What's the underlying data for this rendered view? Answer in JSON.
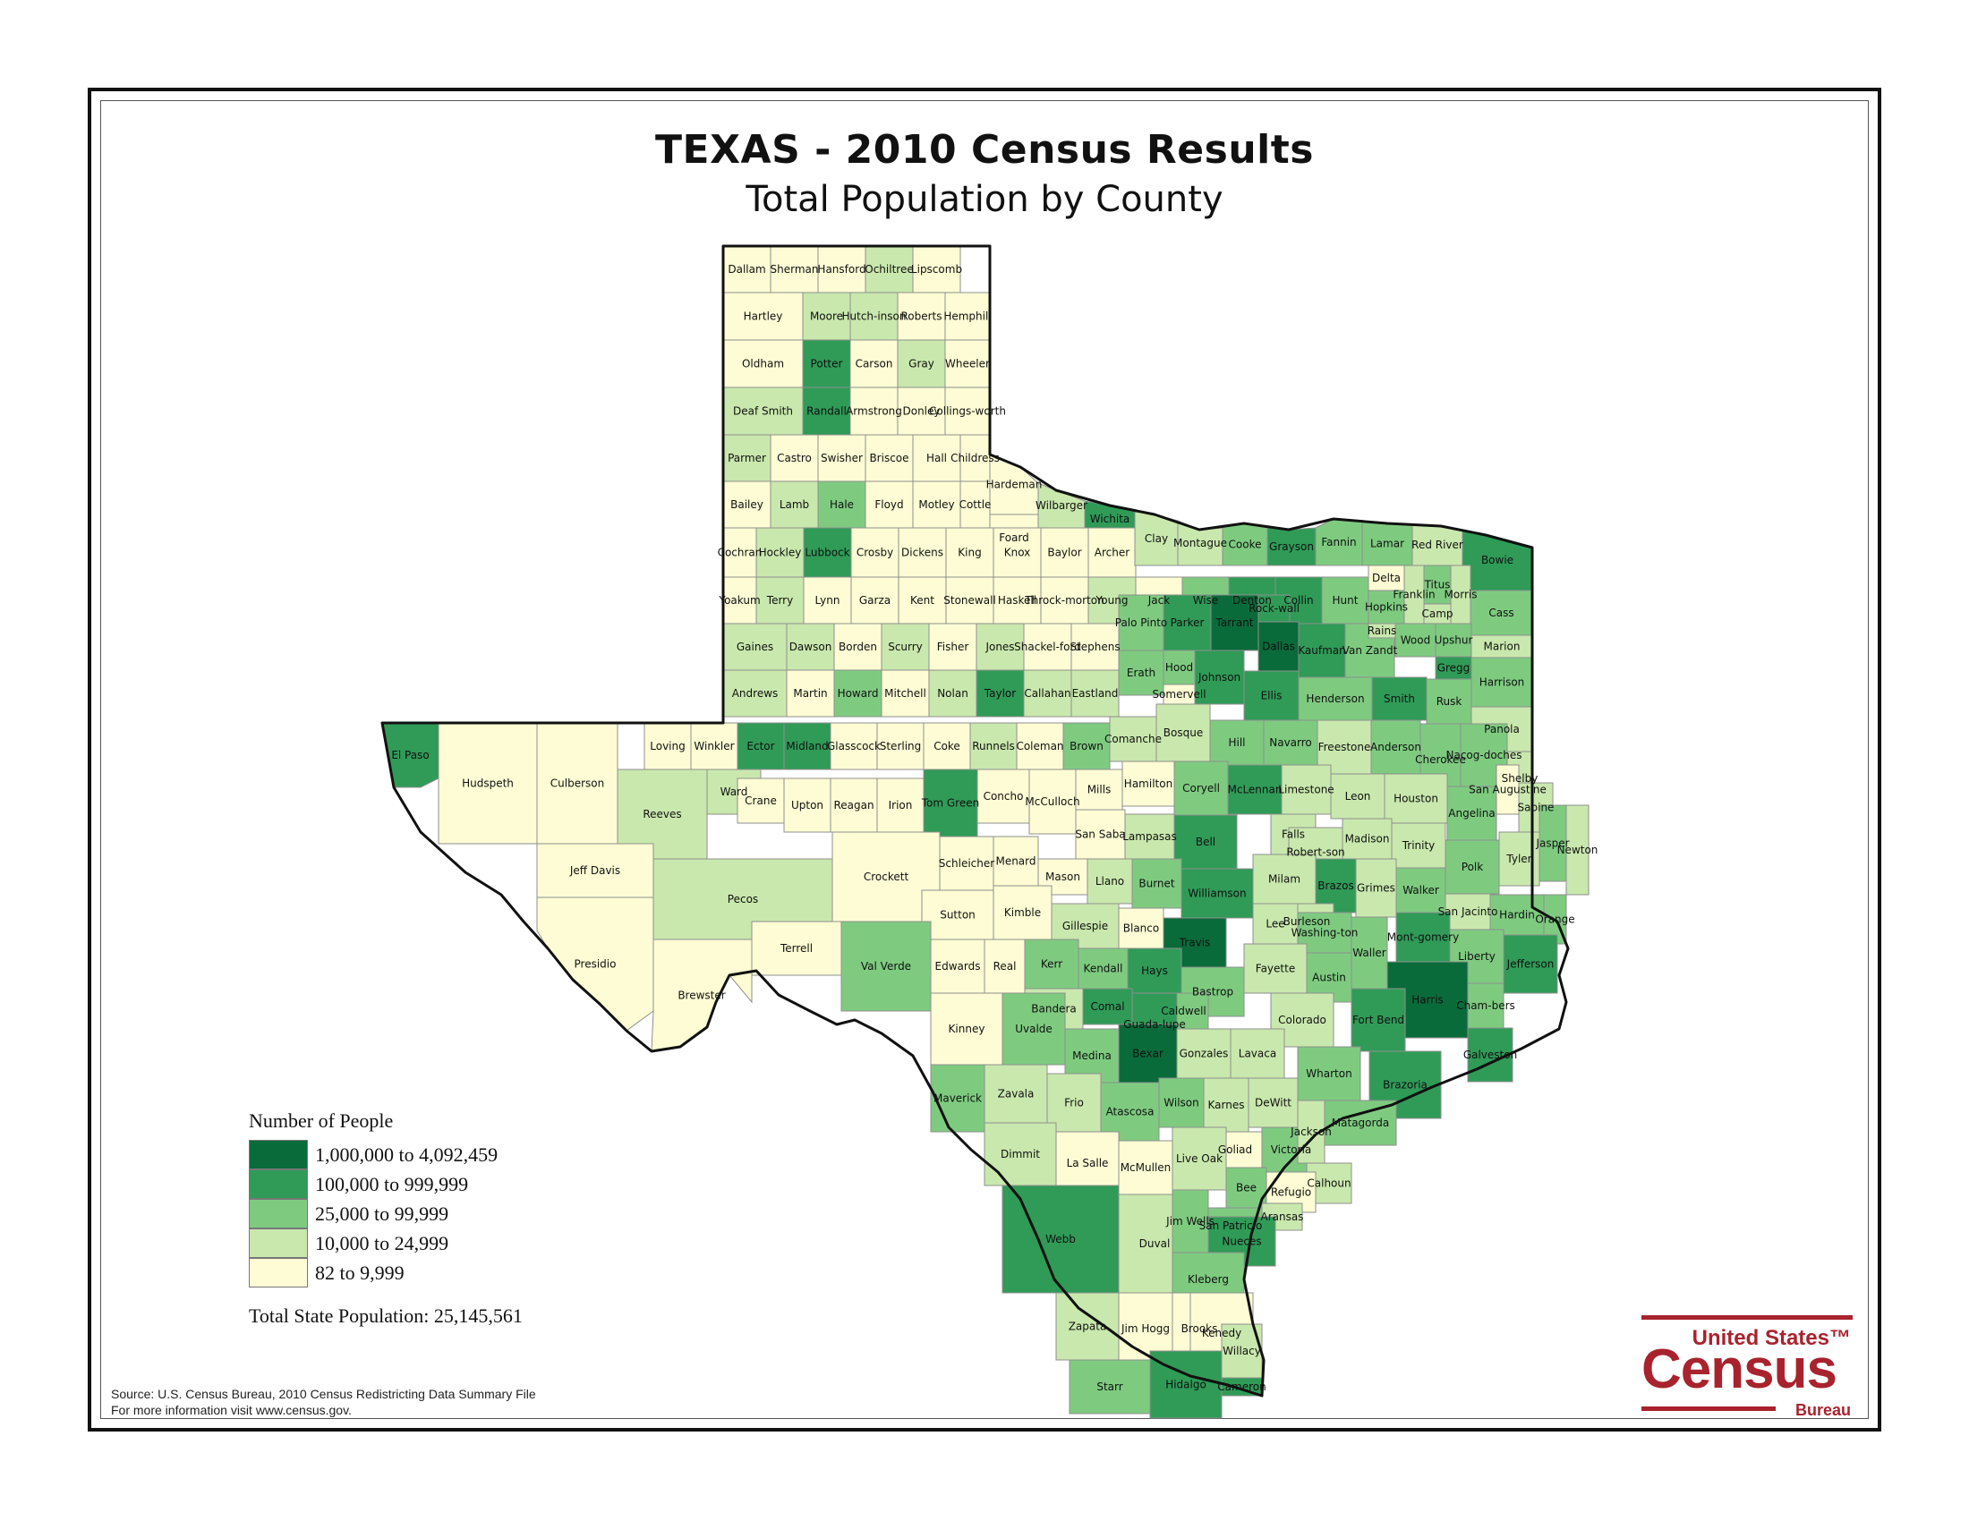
{
  "title": "TEXAS - 2010 Census Results",
  "subtitle": "Total Population by County",
  "legend": {
    "title": "Number of People",
    "classes": [
      {
        "label": "1,000,000 to 4,092,459",
        "color": "#0a6b3a"
      },
      {
        "label": "100,000 to 999,999",
        "color": "#2f9b57"
      },
      {
        "label": "25,000 to 99,999",
        "color": "#7ecb80"
      },
      {
        "label": "10,000 to 24,999",
        "color": "#c9e8ad"
      },
      {
        "label": "82 to 9,999",
        "color": "#fdfcd4"
      }
    ]
  },
  "total_population": "Total State Population:  25,145,561",
  "source": {
    "line1": "Source:  U.S. Census Bureau, 2010 Census Redistricting Data Summary File",
    "line2": "For more information visit www.census.gov."
  },
  "logo": {
    "top": "United States™",
    "main": "Census",
    "bottom": "Bureau"
  },
  "counties": [
    {
      "name": "Dallam",
      "class": 4
    },
    {
      "name": "Sherman",
      "class": 4
    },
    {
      "name": "Hansford",
      "class": 4
    },
    {
      "name": "Ochiltree",
      "class": 3
    },
    {
      "name": "Lipscomb",
      "class": 4
    },
    {
      "name": "Hartley",
      "class": 4
    },
    {
      "name": "Moore",
      "class": 3
    },
    {
      "name": "Hutch-inson",
      "class": 3
    },
    {
      "name": "Roberts",
      "class": 4
    },
    {
      "name": "Hemphill",
      "class": 4
    },
    {
      "name": "Oldham",
      "class": 4
    },
    {
      "name": "Potter",
      "class": 1
    },
    {
      "name": "Carson",
      "class": 4
    },
    {
      "name": "Gray",
      "class": 3
    },
    {
      "name": "Wheeler",
      "class": 4
    },
    {
      "name": "Deaf Smith",
      "class": 3
    },
    {
      "name": "Randall",
      "class": 1
    },
    {
      "name": "Armstrong",
      "class": 4
    },
    {
      "name": "Donley",
      "class": 4
    },
    {
      "name": "Collings-worth",
      "class": 4
    },
    {
      "name": "Parmer",
      "class": 3
    },
    {
      "name": "Castro",
      "class": 4
    },
    {
      "name": "Swisher",
      "class": 4
    },
    {
      "name": "Briscoe",
      "class": 4
    },
    {
      "name": "Hall",
      "class": 4
    },
    {
      "name": "Childress",
      "class": 4
    },
    {
      "name": "Hardeman",
      "class": 4
    },
    {
      "name": "Wilbarger",
      "class": 3
    },
    {
      "name": "Wichita",
      "class": 1
    },
    {
      "name": "Foard",
      "class": 4
    },
    {
      "name": "Bailey",
      "class": 4
    },
    {
      "name": "Lamb",
      "class": 3
    },
    {
      "name": "Hale",
      "class": 2
    },
    {
      "name": "Floyd",
      "class": 4
    },
    {
      "name": "Motley",
      "class": 4
    },
    {
      "name": "Cottle",
      "class": 4
    },
    {
      "name": "Cochran",
      "class": 4
    },
    {
      "name": "Hockley",
      "class": 3
    },
    {
      "name": "Lubbock",
      "class": 1
    },
    {
      "name": "Crosby",
      "class": 4
    },
    {
      "name": "Dickens",
      "class": 4
    },
    {
      "name": "King",
      "class": 4
    },
    {
      "name": "Knox",
      "class": 4
    },
    {
      "name": "Baylor",
      "class": 4
    },
    {
      "name": "Archer",
      "class": 4
    },
    {
      "name": "Clay",
      "class": 3
    },
    {
      "name": "Montague",
      "class": 3
    },
    {
      "name": "Cooke",
      "class": 2
    },
    {
      "name": "Grayson",
      "class": 1
    },
    {
      "name": "Fannin",
      "class": 2
    },
    {
      "name": "Lamar",
      "class": 2
    },
    {
      "name": "Red River",
      "class": 3
    },
    {
      "name": "Bowie",
      "class": 1
    },
    {
      "name": "Yoakum",
      "class": 4
    },
    {
      "name": "Terry",
      "class": 3
    },
    {
      "name": "Lynn",
      "class": 4
    },
    {
      "name": "Garza",
      "class": 4
    },
    {
      "name": "Kent",
      "class": 4
    },
    {
      "name": "Stonewall",
      "class": 4
    },
    {
      "name": "Haskell",
      "class": 4
    },
    {
      "name": "Throck-morton",
      "class": 4
    },
    {
      "name": "Young",
      "class": 3
    },
    {
      "name": "Jack",
      "class": 4
    },
    {
      "name": "Wise",
      "class": 2
    },
    {
      "name": "Denton",
      "class": 1
    },
    {
      "name": "Collin",
      "class": 1
    },
    {
      "name": "Hunt",
      "class": 2
    },
    {
      "name": "Delta",
      "class": 4
    },
    {
      "name": "Hopkins",
      "class": 2
    },
    {
      "name": "Franklin",
      "class": 3
    },
    {
      "name": "Titus",
      "class": 2
    },
    {
      "name": "Morris",
      "class": 3
    },
    {
      "name": "Cass",
      "class": 2
    },
    {
      "name": "Camp",
      "class": 3
    },
    {
      "name": "Gaines",
      "class": 3
    },
    {
      "name": "Dawson",
      "class": 3
    },
    {
      "name": "Borden",
      "class": 4
    },
    {
      "name": "Scurry",
      "class": 3
    },
    {
      "name": "Fisher",
      "class": 4
    },
    {
      "name": "Jones",
      "class": 3
    },
    {
      "name": "Shackel-ford",
      "class": 4
    },
    {
      "name": "Stephens",
      "class": 4
    },
    {
      "name": "Palo Pinto",
      "class": 2
    },
    {
      "name": "Parker",
      "class": 1
    },
    {
      "name": "Tarrant",
      "class": 0
    },
    {
      "name": "Dallas",
      "class": 0
    },
    {
      "name": "Rock-wall",
      "class": 1
    },
    {
      "name": "Kaufman",
      "class": 1
    },
    {
      "name": "Van Zandt",
      "class": 2
    },
    {
      "name": "Rains",
      "class": 3
    },
    {
      "name": "Wood",
      "class": 2
    },
    {
      "name": "Upshur",
      "class": 2
    },
    {
      "name": "Marion",
      "class": 3
    },
    {
      "name": "Gregg",
      "class": 1
    },
    {
      "name": "Harrison",
      "class": 2
    },
    {
      "name": "Andrews",
      "class": 3
    },
    {
      "name": "Martin",
      "class": 4
    },
    {
      "name": "Howard",
      "class": 2
    },
    {
      "name": "Mitchell",
      "class": 4
    },
    {
      "name": "Nolan",
      "class": 3
    },
    {
      "name": "Taylor",
      "class": 1
    },
    {
      "name": "Callahan",
      "class": 3
    },
    {
      "name": "Eastland",
      "class": 3
    },
    {
      "name": "Erath",
      "class": 2
    },
    {
      "name": "Hood",
      "class": 2
    },
    {
      "name": "Somervell",
      "class": 4
    },
    {
      "name": "Johnson",
      "class": 1
    },
    {
      "name": "Ellis",
      "class": 1
    },
    {
      "name": "Henderson",
      "class": 2
    },
    {
      "name": "Smith",
      "class": 1
    },
    {
      "name": "Rusk",
      "class": 2
    },
    {
      "name": "Panola",
      "class": 3
    },
    {
      "name": "El Paso",
      "class": 1
    },
    {
      "name": "Loving",
      "class": 4
    },
    {
      "name": "Winkler",
      "class": 4
    },
    {
      "name": "Ector",
      "class": 1
    },
    {
      "name": "Midland",
      "class": 1
    },
    {
      "name": "Glasscock",
      "class": 4
    },
    {
      "name": "Sterling",
      "class": 4
    },
    {
      "name": "Coke",
      "class": 4
    },
    {
      "name": "Runnels",
      "class": 3
    },
    {
      "name": "Coleman",
      "class": 4
    },
    {
      "name": "Brown",
      "class": 2
    },
    {
      "name": "Comanche",
      "class": 3
    },
    {
      "name": "Bosque",
      "class": 3
    },
    {
      "name": "Hill",
      "class": 2
    },
    {
      "name": "Navarro",
      "class": 2
    },
    {
      "name": "Anderson",
      "class": 2
    },
    {
      "name": "Cherokee",
      "class": 2
    },
    {
      "name": "Nacog-doches",
      "class": 2
    },
    {
      "name": "Shelby",
      "class": 3
    },
    {
      "name": "Freestone",
      "class": 3
    },
    {
      "name": "Hudspeth",
      "class": 4
    },
    {
      "name": "Culberson",
      "class": 4
    },
    {
      "name": "Reeves",
      "class": 3
    },
    {
      "name": "Ward",
      "class": 3
    },
    {
      "name": "Crane",
      "class": 4
    },
    {
      "name": "Upton",
      "class": 4
    },
    {
      "name": "Reagan",
      "class": 4
    },
    {
      "name": "Irion",
      "class": 4
    },
    {
      "name": "Tom Green",
      "class": 1
    },
    {
      "name": "Concho",
      "class": 4
    },
    {
      "name": "McCulloch",
      "class": 4
    },
    {
      "name": "Mills",
      "class": 4
    },
    {
      "name": "Hamilton",
      "class": 4
    },
    {
      "name": "Coryell",
      "class": 2
    },
    {
      "name": "McLennan",
      "class": 1
    },
    {
      "name": "Limestone",
      "class": 3
    },
    {
      "name": "Falls",
      "class": 3
    },
    {
      "name": "Leon",
      "class": 3
    },
    {
      "name": "Houston",
      "class": 3
    },
    {
      "name": "Angelina",
      "class": 2
    },
    {
      "name": "San Augustine",
      "class": 4
    },
    {
      "name": "Sabine",
      "class": 3
    },
    {
      "name": "Jeff Davis",
      "class": 4
    },
    {
      "name": "Pecos",
      "class": 3
    },
    {
      "name": "Crockett",
      "class": 4
    },
    {
      "name": "Schleicher",
      "class": 4
    },
    {
      "name": "Menard",
      "class": 4
    },
    {
      "name": "San Saba",
      "class": 4
    },
    {
      "name": "Lampasas",
      "class": 3
    },
    {
      "name": "Bell",
      "class": 1
    },
    {
      "name": "Robert-son",
      "class": 3
    },
    {
      "name": "Madison",
      "class": 3
    },
    {
      "name": "Trinity",
      "class": 3
    },
    {
      "name": "Polk",
      "class": 2
    },
    {
      "name": "Tyler",
      "class": 3
    },
    {
      "name": "Jasper",
      "class": 2
    },
    {
      "name": "Newton",
      "class": 3
    },
    {
      "name": "Mason",
      "class": 4
    },
    {
      "name": "Llano",
      "class": 3
    },
    {
      "name": "Burnet",
      "class": 2
    },
    {
      "name": "Williamson",
      "class": 1
    },
    {
      "name": "Milam",
      "class": 3
    },
    {
      "name": "Brazos",
      "class": 1
    },
    {
      "name": "Grimes",
      "class": 3
    },
    {
      "name": "Walker",
      "class": 2
    },
    {
      "name": "San Jacinto",
      "class": 3
    },
    {
      "name": "Burleson",
      "class": 3
    },
    {
      "name": "Presidio",
      "class": 4
    },
    {
      "name": "Brewster",
      "class": 4
    },
    {
      "name": "Terrell",
      "class": 4
    },
    {
      "name": "Sutton",
      "class": 4
    },
    {
      "name": "Kimble",
      "class": 4
    },
    {
      "name": "Gillespie",
      "class": 3
    },
    {
      "name": "Blanco",
      "class": 4
    },
    {
      "name": "Travis",
      "class": 0
    },
    {
      "name": "Lee",
      "class": 3
    },
    {
      "name": "Washing-ton",
      "class": 2
    },
    {
      "name": "Mont-gomery",
      "class": 1
    },
    {
      "name": "Hardin",
      "class": 2
    },
    {
      "name": "Liberty",
      "class": 2
    },
    {
      "name": "Orange",
      "class": 2
    },
    {
      "name": "Jefferson",
      "class": 1
    },
    {
      "name": "Val Verde",
      "class": 2
    },
    {
      "name": "Edwards",
      "class": 4
    },
    {
      "name": "Real",
      "class": 4
    },
    {
      "name": "Kerr",
      "class": 2
    },
    {
      "name": "Kendall",
      "class": 2
    },
    {
      "name": "Hays",
      "class": 1
    },
    {
      "name": "Bastrop",
      "class": 2
    },
    {
      "name": "Fayette",
      "class": 3
    },
    {
      "name": "Austin",
      "class": 2
    },
    {
      "name": "Waller",
      "class": 2
    },
    {
      "name": "Harris",
      "class": 0
    },
    {
      "name": "Cham-bers",
      "class": 2
    },
    {
      "name": "Bandera",
      "class": 3
    },
    {
      "name": "Comal",
      "class": 1
    },
    {
      "name": "Caldwell",
      "class": 2
    },
    {
      "name": "Guada-lupe",
      "class": 1
    },
    {
      "name": "Colorado",
      "class": 3
    },
    {
      "name": "Fort Bend",
      "class": 1
    },
    {
      "name": "Galveston",
      "class": 1
    },
    {
      "name": "Kinney",
      "class": 4
    },
    {
      "name": "Uvalde",
      "class": 2
    },
    {
      "name": "Medina",
      "class": 2
    },
    {
      "name": "Bexar",
      "class": 0
    },
    {
      "name": "Gonzales",
      "class": 3
    },
    {
      "name": "Lavaca",
      "class": 3
    },
    {
      "name": "Wharton",
      "class": 2
    },
    {
      "name": "Brazoria",
      "class": 1
    },
    {
      "name": "Matagorda",
      "class": 2
    },
    {
      "name": "Maverick",
      "class": 2
    },
    {
      "name": "Zavala",
      "class": 3
    },
    {
      "name": "Frio",
      "class": 3
    },
    {
      "name": "Atascosa",
      "class": 2
    },
    {
      "name": "Wilson",
      "class": 2
    },
    {
      "name": "Karnes",
      "class": 3
    },
    {
      "name": "DeWitt",
      "class": 3
    },
    {
      "name": "Victoria",
      "class": 2
    },
    {
      "name": "Jackson",
      "class": 3
    },
    {
      "name": "Goliad",
      "class": 4
    },
    {
      "name": "Calhoun",
      "class": 3
    },
    {
      "name": "Dimmit",
      "class": 3
    },
    {
      "name": "La Salle",
      "class": 4
    },
    {
      "name": "McMullen",
      "class": 4
    },
    {
      "name": "Live Oak",
      "class": 3
    },
    {
      "name": "Bee",
      "class": 2
    },
    {
      "name": "Refugio",
      "class": 4
    },
    {
      "name": "San Patricio",
      "class": 2
    },
    {
      "name": "Aransas",
      "class": 3
    },
    {
      "name": "Webb",
      "class": 1
    },
    {
      "name": "Duval",
      "class": 3
    },
    {
      "name": "Jim Wells",
      "class": 2
    },
    {
      "name": "Nueces",
      "class": 1
    },
    {
      "name": "Kleberg",
      "class": 2
    },
    {
      "name": "Zapata",
      "class": 3
    },
    {
      "name": "Jim Hogg",
      "class": 4
    },
    {
      "name": "Brooks",
      "class": 4
    },
    {
      "name": "Kenedy",
      "class": 4
    },
    {
      "name": "Starr",
      "class": 2
    },
    {
      "name": "Hidalgo",
      "class": 1
    },
    {
      "name": "Willacy",
      "class": 3
    },
    {
      "name": "Cameron",
      "class": 1
    }
  ]
}
